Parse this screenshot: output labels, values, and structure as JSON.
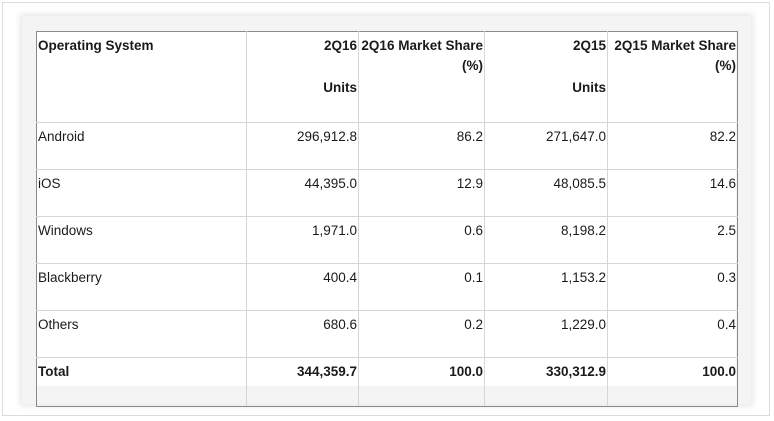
{
  "table": {
    "headers": {
      "os": "Operating System",
      "q2_16": "2Q16",
      "q2_16_units": "Units",
      "q2_16_share": "2Q16 Market Share (%)",
      "q2_15": "2Q15",
      "q2_15_units": "Units",
      "q2_15_share": "2Q15 Market Share (%)"
    },
    "rows": [
      {
        "os": "Android",
        "units_2q16": "296,912.8",
        "share_2q16": "86.2",
        "units_2q15": "271,647.0",
        "share_2q15": "82.2"
      },
      {
        "os": "iOS",
        "units_2q16": "44,395.0",
        "share_2q16": "12.9",
        "units_2q15": "48,085.5",
        "share_2q15": "14.6"
      },
      {
        "os": "Windows",
        "units_2q16": "1,971.0",
        "share_2q16": "0.6",
        "units_2q15": "8,198.2",
        "share_2q15": "2.5"
      },
      {
        "os": "Blackberry",
        "units_2q16": "400.4",
        "share_2q16": "0.1",
        "units_2q15": "1,153.2",
        "share_2q15": "0.3"
      },
      {
        "os": "Others",
        "units_2q16": "680.6",
        "share_2q16": "0.2",
        "units_2q15": "1,229.0",
        "share_2q15": "0.4"
      }
    ],
    "total": {
      "os": "Total",
      "units_2q16": "344,359.7",
      "share_2q16": "100.0",
      "units_2q15": "330,312.9",
      "share_2q15": "100.0"
    }
  }
}
